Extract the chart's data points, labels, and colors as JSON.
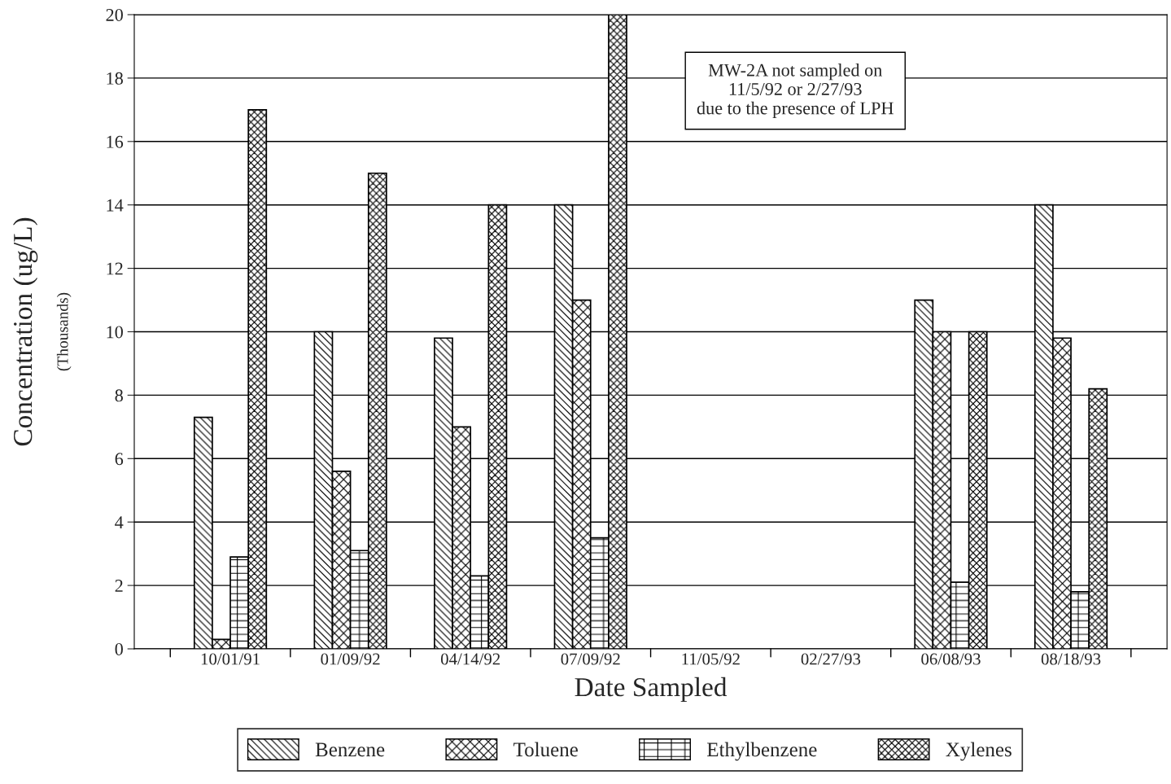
{
  "chart_data": {
    "type": "bar",
    "xlabel": "Date Sampled",
    "ylabel": "Concentration (ug/L)",
    "categories": [
      "10/01/91",
      "01/09/92",
      "04/14/92",
      "07/09/92",
      "11/05/92",
      "02/27/93",
      "06/08/93",
      "08/18/93"
    ],
    "series": [
      {
        "name": "Benzene",
        "color": "#000000",
        "values": [
          7.3,
          10,
          9.8,
          14,
          null,
          null,
          11,
          14
        ]
      },
      {
        "name": "Toluene",
        "color": "#000000",
        "values": [
          0.3,
          5.6,
          7,
          11,
          null,
          null,
          10,
          9.8
        ]
      },
      {
        "name": "Ethylbenzene",
        "color": "#000000",
        "values": [
          2.9,
          3.1,
          2.3,
          3.5,
          null,
          null,
          2.1,
          1.8
        ]
      },
      {
        "name": "Xylenes",
        "color": "#000000",
        "values": [
          17,
          15,
          14,
          20,
          null,
          null,
          10,
          8.2
        ]
      }
    ],
    "ylim": [
      0,
      20
    ],
    "yticks": [
      0,
      2,
      4,
      6,
      8,
      10,
      12,
      14,
      16,
      18,
      20
    ],
    "grid": "y",
    "legend": "bottom",
    "annotations": [
      "(Thousands)",
      "MW-2A not sampled on\n11/5/92 or 2/27/93\ndue to the presence of LPH"
    ]
  }
}
